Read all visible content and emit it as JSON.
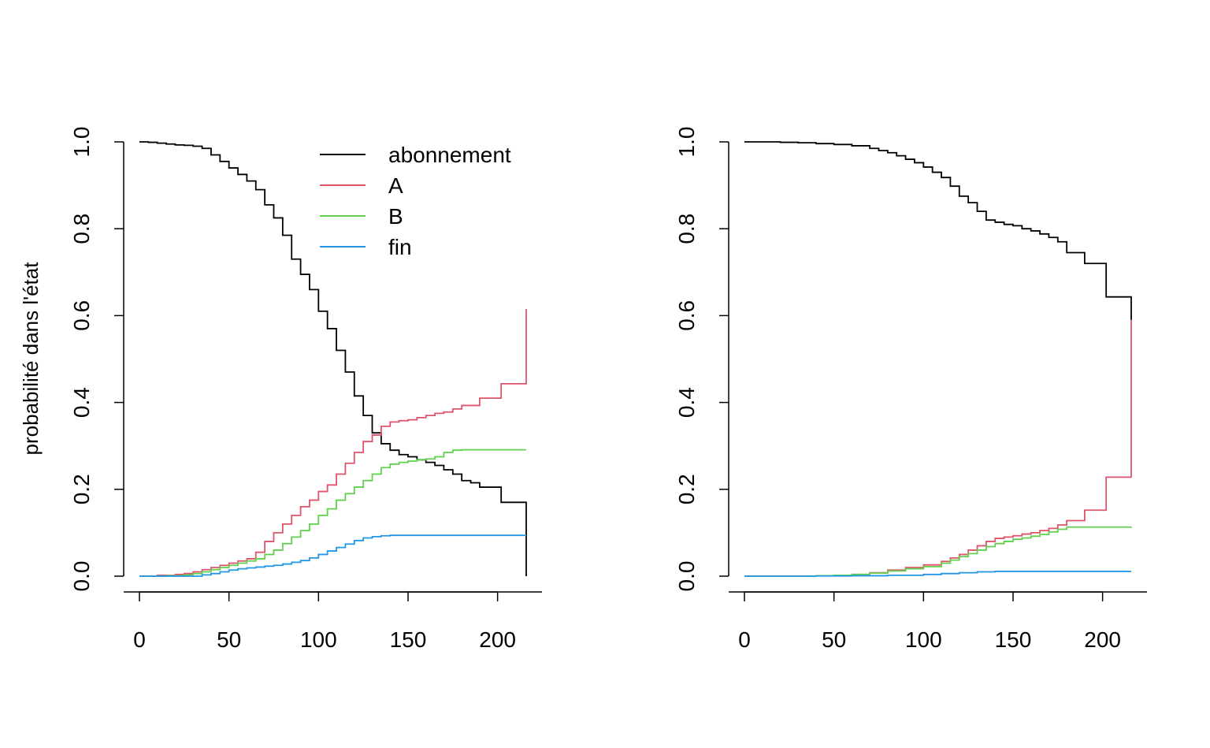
{
  "figure": {
    "ylabel": "probabilité dans l'état"
  },
  "colors": {
    "abonnement": "#000000",
    "A": "#DF536B",
    "B": "#61D04F",
    "fin": "#2297E6"
  },
  "legend": {
    "items": [
      {
        "label": "abonnement",
        "color": "#000000"
      },
      {
        "label": "A",
        "color": "#DF536B"
      },
      {
        "label": "B",
        "color": "#61D04F"
      },
      {
        "label": "fin",
        "color": "#2297E6"
      }
    ]
  },
  "chart_data": [
    {
      "type": "line",
      "step": true,
      "xlim": [
        0,
        216
      ],
      "ylim": [
        0,
        1
      ],
      "xticks": [
        "0",
        "50",
        "100",
        "150",
        "200"
      ],
      "yticks": [
        "0.0",
        "0.2",
        "0.4",
        "0.6",
        "0.8",
        "1.0"
      ],
      "legend": "top-right",
      "series": [
        {
          "name": "abonnement",
          "color": "#000000",
          "x": [
            0,
            5,
            10,
            15,
            20,
            25,
            30,
            35,
            40,
            45,
            50,
            55,
            60,
            65,
            70,
            75,
            80,
            85,
            90,
            95,
            100,
            105,
            110,
            115,
            120,
            125,
            130,
            135,
            140,
            145,
            150,
            155,
            160,
            165,
            170,
            175,
            180,
            185,
            190,
            202,
            216
          ],
          "y": [
            1.0,
            0.999,
            0.997,
            0.995,
            0.993,
            0.992,
            0.99,
            0.985,
            0.97,
            0.955,
            0.94,
            0.925,
            0.91,
            0.89,
            0.855,
            0.825,
            0.785,
            0.73,
            0.695,
            0.66,
            0.61,
            0.57,
            0.52,
            0.47,
            0.415,
            0.37,
            0.33,
            0.305,
            0.29,
            0.28,
            0.275,
            0.268,
            0.262,
            0.255,
            0.245,
            0.235,
            0.22,
            0.215,
            0.205,
            0.17,
            0.0
          ]
        },
        {
          "name": "A",
          "color": "#DF536B",
          "x": [
            0,
            10,
            20,
            25,
            30,
            35,
            40,
            45,
            50,
            55,
            60,
            65,
            70,
            75,
            80,
            85,
            90,
            95,
            100,
            105,
            110,
            115,
            120,
            125,
            130,
            135,
            140,
            145,
            150,
            155,
            160,
            165,
            170,
            175,
            180,
            190,
            202,
            216
          ],
          "y": [
            0.0,
            0.002,
            0.004,
            0.006,
            0.01,
            0.015,
            0.02,
            0.025,
            0.03,
            0.035,
            0.04,
            0.055,
            0.08,
            0.1,
            0.12,
            0.14,
            0.16,
            0.175,
            0.195,
            0.21,
            0.235,
            0.26,
            0.285,
            0.31,
            0.325,
            0.345,
            0.355,
            0.358,
            0.36,
            0.365,
            0.37,
            0.375,
            0.378,
            0.385,
            0.393,
            0.41,
            0.443,
            0.615
          ]
        },
        {
          "name": "B",
          "color": "#61D04F",
          "x": [
            0,
            15,
            25,
            30,
            35,
            40,
            45,
            50,
            55,
            60,
            65,
            70,
            75,
            80,
            85,
            90,
            95,
            100,
            105,
            110,
            115,
            120,
            125,
            130,
            135,
            140,
            145,
            150,
            155,
            160,
            165,
            170,
            175,
            180,
            216
          ],
          "y": [
            0.0,
            0.001,
            0.003,
            0.006,
            0.01,
            0.015,
            0.02,
            0.025,
            0.03,
            0.035,
            0.04,
            0.05,
            0.06,
            0.075,
            0.09,
            0.105,
            0.12,
            0.14,
            0.155,
            0.175,
            0.19,
            0.205,
            0.22,
            0.235,
            0.25,
            0.258,
            0.262,
            0.265,
            0.268,
            0.27,
            0.275,
            0.285,
            0.29,
            0.291,
            0.291
          ]
        },
        {
          "name": "fin",
          "color": "#2297E6",
          "x": [
            0,
            35,
            40,
            45,
            50,
            55,
            60,
            65,
            70,
            75,
            80,
            85,
            90,
            95,
            100,
            105,
            110,
            115,
            120,
            125,
            130,
            135,
            140,
            216
          ],
          "y": [
            0.0,
            0.003,
            0.006,
            0.01,
            0.014,
            0.017,
            0.019,
            0.021,
            0.023,
            0.025,
            0.028,
            0.032,
            0.036,
            0.042,
            0.05,
            0.058,
            0.066,
            0.074,
            0.082,
            0.088,
            0.091,
            0.093,
            0.094,
            0.094
          ]
        }
      ]
    },
    {
      "type": "line",
      "step": true,
      "xlim": [
        0,
        216
      ],
      "ylim": [
        0,
        1
      ],
      "xticks": [
        "0",
        "50",
        "100",
        "150",
        "200"
      ],
      "yticks": [
        "0.0",
        "0.2",
        "0.4",
        "0.6",
        "0.8",
        "1.0"
      ],
      "series": [
        {
          "name": "abonnement",
          "color": "#000000",
          "x": [
            0,
            20,
            30,
            40,
            50,
            60,
            70,
            75,
            80,
            85,
            90,
            95,
            100,
            105,
            110,
            115,
            120,
            125,
            130,
            135,
            140,
            145,
            150,
            155,
            160,
            165,
            170,
            175,
            180,
            190,
            202,
            216
          ],
          "y": [
            1.0,
            0.999,
            0.998,
            0.996,
            0.994,
            0.991,
            0.985,
            0.98,
            0.975,
            0.968,
            0.96,
            0.952,
            0.942,
            0.93,
            0.918,
            0.898,
            0.875,
            0.86,
            0.84,
            0.82,
            0.815,
            0.81,
            0.807,
            0.8,
            0.795,
            0.788,
            0.78,
            0.77,
            0.745,
            0.72,
            0.643,
            0.59
          ]
        },
        {
          "name": "A",
          "color": "#DF536B",
          "x": [
            0,
            40,
            50,
            60,
            70,
            80,
            90,
            100,
            110,
            115,
            120,
            125,
            130,
            135,
            140,
            145,
            150,
            155,
            160,
            165,
            170,
            175,
            180,
            190,
            202,
            216
          ],
          "y": [
            0.0,
            0.001,
            0.002,
            0.004,
            0.008,
            0.014,
            0.02,
            0.026,
            0.034,
            0.042,
            0.05,
            0.06,
            0.07,
            0.08,
            0.087,
            0.09,
            0.093,
            0.097,
            0.1,
            0.105,
            0.11,
            0.118,
            0.128,
            0.152,
            0.228,
            0.59
          ]
        },
        {
          "name": "B",
          "color": "#61D04F",
          "x": [
            0,
            40,
            50,
            60,
            70,
            80,
            90,
            100,
            110,
            115,
            120,
            125,
            130,
            135,
            140,
            145,
            150,
            155,
            160,
            165,
            170,
            175,
            180,
            216
          ],
          "y": [
            0.0,
            0.001,
            0.002,
            0.004,
            0.007,
            0.012,
            0.017,
            0.022,
            0.03,
            0.037,
            0.045,
            0.052,
            0.06,
            0.068,
            0.075,
            0.08,
            0.085,
            0.088,
            0.092,
            0.096,
            0.102,
            0.108,
            0.113,
            0.114
          ]
        },
        {
          "name": "fin",
          "color": "#2297E6",
          "x": [
            0,
            40,
            60,
            80,
            100,
            110,
            120,
            130,
            140,
            216
          ],
          "y": [
            0.0,
            0.0005,
            0.001,
            0.002,
            0.004,
            0.006,
            0.008,
            0.01,
            0.011,
            0.011
          ]
        }
      ]
    }
  ]
}
